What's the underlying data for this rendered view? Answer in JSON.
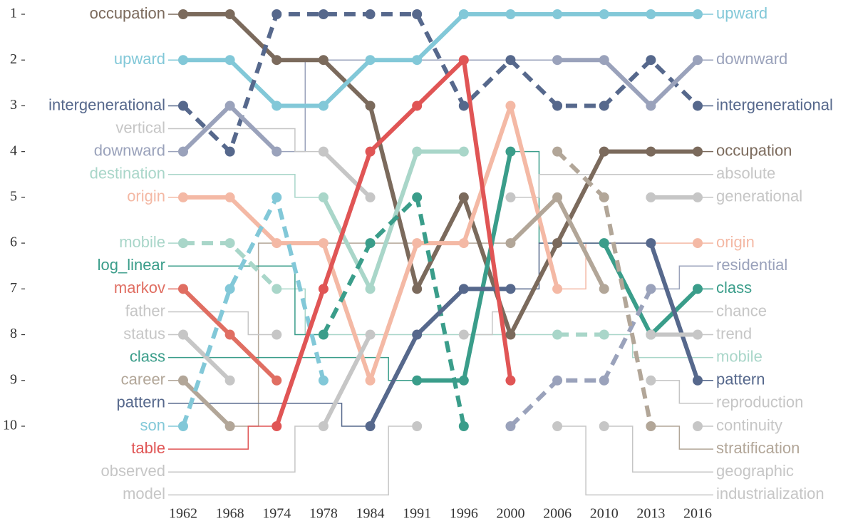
{
  "chart_data": {
    "type": "bump",
    "categories": [
      "1962",
      "1968",
      "1974",
      "1978",
      "1984",
      "1991",
      "1996",
      "2000",
      "2006",
      "2010",
      "2013",
      "2016"
    ],
    "ylim": [
      10,
      1
    ],
    "yticks": [
      1,
      2,
      3,
      4,
      5,
      6,
      7,
      8,
      9,
      10
    ],
    "left_labels": [
      "occupation",
      "upward",
      "intergenerational",
      "vertical",
      "downward",
      "destination",
      "origin",
      "mobile",
      "log_linear",
      "markov",
      "father",
      "status",
      "class",
      "career",
      "pattern",
      "son",
      "table",
      "observed",
      "model"
    ],
    "right_labels": [
      "upward",
      "downward",
      "intergenerational",
      "occupation",
      "absolute",
      "generational",
      "origin",
      "residential",
      "class",
      "chance",
      "trend",
      "mobile",
      "pattern",
      "reproduction",
      "continuity",
      "stratification",
      "geographic",
      "industrialization"
    ],
    "series": [
      {
        "name": "occupation",
        "color": "#7b6a5c",
        "dashed": false,
        "values": [
          1,
          1,
          2,
          2,
          3,
          7,
          5,
          8,
          6,
          4,
          4,
          4
        ]
      },
      {
        "name": "upward",
        "color": "#82c8d8",
        "dashed": false,
        "values": [
          2,
          2,
          3,
          3,
          2,
          2,
          1,
          1,
          1,
          1,
          1,
          1
        ]
      },
      {
        "name": "intergenerational",
        "color": "#56688c",
        "dashed": true,
        "values": [
          3,
          4,
          1,
          1,
          1,
          1,
          3,
          2,
          3,
          3,
          2,
          3
        ]
      },
      {
        "name": "vertical",
        "color": "#c6c6c6",
        "dashed": false,
        "values": [
          null,
          null,
          null,
          4,
          5,
          null,
          null,
          null,
          null,
          null,
          null,
          null
        ]
      },
      {
        "name": "downward",
        "color": "#9aa2bb",
        "dashed": false,
        "values": [
          4,
          3,
          4,
          null,
          null,
          null,
          null,
          null,
          2,
          2,
          3,
          2
        ]
      },
      {
        "name": "destination",
        "color": "#a9d6c9",
        "dashed": false,
        "values": [
          null,
          null,
          null,
          5,
          7,
          4,
          4,
          null,
          null,
          null,
          null,
          null
        ]
      },
      {
        "name": "origin",
        "color": "#f4b9a5",
        "dashed": false,
        "values": [
          5,
          5,
          6,
          6,
          9,
          6,
          6,
          3,
          7,
          null,
          null,
          6
        ]
      },
      {
        "name": "mobile",
        "color": "#a9d6c9",
        "dashed": true,
        "values": [
          6,
          6,
          7,
          null,
          null,
          null,
          null,
          null,
          8,
          8,
          null,
          null
        ]
      },
      {
        "name": "log_linear",
        "color": "#3a9d8a",
        "dashed": true,
        "values": [
          null,
          null,
          null,
          8,
          6,
          5,
          10,
          null,
          null,
          null,
          null,
          null
        ]
      },
      {
        "name": "markov",
        "color": "#e06e62",
        "dashed": false,
        "values": [
          7,
          8,
          9,
          null,
          null,
          null,
          null,
          null,
          null,
          null,
          null,
          null
        ]
      },
      {
        "name": "father",
        "color": "#c6c6c6",
        "dashed": false,
        "values": [
          null,
          null,
          8,
          null,
          null,
          null,
          null,
          null,
          null,
          null,
          null,
          null
        ]
      },
      {
        "name": "status",
        "color": "#c6c6c6",
        "dashed": false,
        "values": [
          8,
          9,
          null,
          null,
          null,
          null,
          null,
          null,
          null,
          null,
          null,
          null
        ]
      },
      {
        "name": "class",
        "color": "#3a9d8a",
        "dashed": false,
        "values": [
          null,
          null,
          null,
          null,
          null,
          9,
          9,
          4,
          null,
          6,
          8,
          7
        ]
      },
      {
        "name": "career",
        "color": "#b2a698",
        "dashed": false,
        "values": [
          9,
          10,
          null,
          null,
          null,
          null,
          null,
          6,
          5,
          7,
          null,
          null
        ]
      },
      {
        "name": "pattern",
        "color": "#56688c",
        "dashed": false,
        "values": [
          null,
          null,
          null,
          null,
          10,
          8,
          7,
          7,
          null,
          null,
          6,
          9
        ]
      },
      {
        "name": "son",
        "color": "#82c8d8",
        "dashed": true,
        "values": [
          10,
          7,
          5,
          9,
          null,
          null,
          null,
          null,
          null,
          null,
          null,
          null
        ]
      },
      {
        "name": "table",
        "color": "#e05555",
        "dashed": false,
        "values": [
          null,
          null,
          10,
          7,
          4,
          3,
          2,
          9,
          null,
          null,
          null,
          null
        ]
      },
      {
        "name": "observed",
        "color": "#c6c6c6",
        "dashed": false,
        "values": [
          null,
          null,
          null,
          10,
          8,
          null,
          null,
          null,
          null,
          null,
          null,
          null
        ]
      },
      {
        "name": "model",
        "color": "#c6c6c6",
        "dashed": false,
        "values": [
          null,
          null,
          null,
          null,
          null,
          10,
          null,
          null,
          null,
          null,
          null,
          null
        ]
      },
      {
        "name": "absolute",
        "color": "#c6c6c6",
        "dashed": false,
        "values": [
          null,
          null,
          null,
          null,
          null,
          null,
          null,
          5,
          null,
          null,
          null,
          null
        ]
      },
      {
        "name": "generational",
        "color": "#c6c6c6",
        "dashed": false,
        "values": [
          null,
          null,
          null,
          null,
          null,
          null,
          null,
          null,
          null,
          null,
          5,
          5
        ]
      },
      {
        "name": "residential",
        "color": "#9aa2bb",
        "dashed": true,
        "values": [
          null,
          null,
          null,
          null,
          null,
          null,
          null,
          10,
          9,
          9,
          7,
          null
        ]
      },
      {
        "name": "chance",
        "color": "#c6c6c6",
        "dashed": false,
        "values": [
          null,
          null,
          null,
          null,
          null,
          null,
          8,
          null,
          null,
          null,
          null,
          null
        ]
      },
      {
        "name": "trend",
        "color": "#c6c6c6",
        "dashed": false,
        "values": [
          null,
          null,
          null,
          null,
          null,
          null,
          null,
          null,
          null,
          null,
          8,
          8
        ]
      },
      {
        "name": "reproduction",
        "color": "#c6c6c6",
        "dashed": false,
        "values": [
          null,
          null,
          null,
          null,
          null,
          null,
          null,
          null,
          null,
          null,
          9,
          null
        ]
      },
      {
        "name": "continuity",
        "color": "#c6c6c6",
        "dashed": false,
        "values": [
          null,
          null,
          null,
          null,
          null,
          null,
          null,
          null,
          null,
          null,
          null,
          10
        ]
      },
      {
        "name": "stratification",
        "color": "#b2a698",
        "dashed": true,
        "values": [
          null,
          null,
          null,
          null,
          null,
          null,
          null,
          null,
          4,
          5,
          10,
          null
        ]
      },
      {
        "name": "geographic",
        "color": "#c6c6c6",
        "dashed": false,
        "values": [
          null,
          null,
          null,
          null,
          null,
          null,
          null,
          null,
          null,
          10,
          null,
          null
        ]
      },
      {
        "name": "industrialization",
        "color": "#c6c6c6",
        "dashed": false,
        "values": [
          null,
          null,
          null,
          null,
          null,
          null,
          null,
          null,
          10,
          null,
          null,
          null
        ]
      }
    ]
  }
}
